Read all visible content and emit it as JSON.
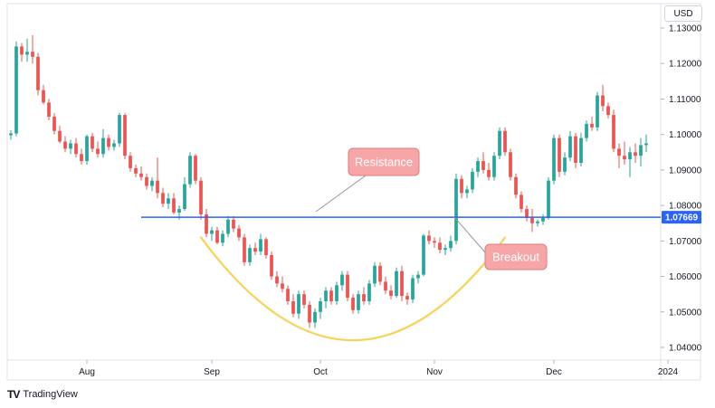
{
  "currency_label": "USD",
  "brand": {
    "logo": "TV",
    "name": "TradingView"
  },
  "colors": {
    "up": "#26a69a",
    "down": "#ef5350",
    "resistance": "#2962ff",
    "arc": "#f7d35a",
    "callout": "#f7a6a8",
    "callout_border": "#e07b7e"
  },
  "chart_data": {
    "type": "candlestick",
    "ylim": [
      1.035,
      1.135
    ],
    "y_ticks": [
      "1.04000",
      "1.05000",
      "1.06000",
      "1.07000",
      "1.08000",
      "1.09000",
      "1.10000",
      "1.11000",
      "1.12000",
      "1.13000"
    ],
    "x_ticks": [
      {
        "label": "Aug",
        "index": 14
      },
      {
        "label": "Sep",
        "index": 37
      },
      {
        "label": "Oct",
        "index": 57
      },
      {
        "label": "Nov",
        "index": 78
      },
      {
        "label": "Dec",
        "index": 100
      },
      {
        "label": "2024",
        "index": 121
      }
    ],
    "resistance": {
      "value": 1.07669,
      "label": "1.07669",
      "start_index": 24
    },
    "annotations": [
      {
        "text": "Resistance",
        "anchor_index": 58,
        "anchor_value": 1.0765
      },
      {
        "text": "Breakout",
        "anchor_index": 87,
        "anchor_value": 1.0765
      }
    ],
    "arc": {
      "start_index": 35,
      "end_index": 91,
      "top_value": 1.071,
      "bottom_value": 1.042
    },
    "ohlc": [
      [
        1.0998,
        1.1012,
        1.0985,
        1.1003
      ],
      [
        1.1003,
        1.1262,
        1.0995,
        1.1248
      ],
      [
        1.1248,
        1.1258,
        1.1205,
        1.1225
      ],
      [
        1.1225,
        1.127,
        1.1205,
        1.1233
      ],
      [
        1.1233,
        1.128,
        1.12,
        1.1219
      ],
      [
        1.1219,
        1.123,
        1.111,
        1.1125
      ],
      [
        1.1125,
        1.114,
        1.1085,
        1.109
      ],
      [
        1.109,
        1.11,
        1.104,
        1.105
      ],
      [
        1.105,
        1.106,
        1.1,
        1.101
      ],
      [
        1.101,
        1.1025,
        1.0975,
        1.098
      ],
      [
        1.098,
        1.0995,
        1.095,
        1.096
      ],
      [
        1.096,
        1.0985,
        1.0945,
        1.0975
      ],
      [
        1.0975,
        1.099,
        1.0935,
        1.0945
      ],
      [
        1.0945,
        1.096,
        1.0915,
        1.0925
      ],
      [
        1.0925,
        1.1,
        1.0915,
        1.0995
      ],
      [
        1.0995,
        1.1005,
        1.095,
        1.096
      ],
      [
        1.096,
        1.098,
        1.0935,
        1.0945
      ],
      [
        1.0945,
        1.1015,
        1.0935,
        1.099
      ],
      [
        1.099,
        1.1,
        1.0955,
        1.0965
      ],
      [
        1.0965,
        1.0985,
        1.0955,
        1.0975
      ],
      [
        1.0975,
        1.106,
        1.0965,
        1.1055
      ],
      [
        1.1055,
        1.106,
        1.093,
        1.094
      ],
      [
        1.094,
        1.095,
        1.0895,
        1.0905
      ],
      [
        1.0905,
        1.0915,
        1.088,
        1.089
      ],
      [
        1.089,
        1.091,
        1.087,
        1.088
      ],
      [
        1.088,
        1.089,
        1.0845,
        1.0855
      ],
      [
        1.0855,
        1.088,
        1.084,
        1.087
      ],
      [
        1.087,
        1.0935,
        1.082,
        1.0835
      ],
      [
        1.0835,
        1.085,
        1.0795,
        1.0805
      ],
      [
        1.0805,
        1.0835,
        1.079,
        1.082
      ],
      [
        1.082,
        1.0835,
        1.0775,
        1.078
      ],
      [
        1.078,
        1.08,
        1.076,
        1.079
      ],
      [
        1.079,
        1.088,
        1.0785,
        1.086
      ],
      [
        1.086,
        1.095,
        1.085,
        1.094
      ],
      [
        1.094,
        1.0945,
        1.086,
        1.087
      ],
      [
        1.087,
        1.088,
        1.076,
        1.0775
      ],
      [
        1.0775,
        1.079,
        1.071,
        1.072
      ],
      [
        1.072,
        1.074,
        1.07,
        1.073
      ],
      [
        1.073,
        1.074,
        1.069,
        1.0695
      ],
      [
        1.0695,
        1.073,
        1.0685,
        1.072
      ],
      [
        1.072,
        1.077,
        1.071,
        1.076
      ],
      [
        1.076,
        1.077,
        1.0725,
        1.0735
      ],
      [
        1.0735,
        1.0745,
        1.07,
        1.071
      ],
      [
        1.071,
        1.072,
        1.063,
        1.064
      ],
      [
        1.064,
        1.069,
        1.063,
        1.068
      ],
      [
        1.068,
        1.0695,
        1.066,
        1.067
      ],
      [
        1.067,
        1.072,
        1.066,
        1.0705
      ],
      [
        1.0705,
        1.071,
        1.065,
        1.066
      ],
      [
        1.066,
        1.067,
        1.059,
        1.06
      ],
      [
        1.06,
        1.0615,
        1.057,
        1.058
      ],
      [
        1.058,
        1.06,
        1.0555,
        1.0565
      ],
      [
        1.0565,
        1.0575,
        1.052,
        1.053
      ],
      [
        1.053,
        1.055,
        1.0485,
        1.0495
      ],
      [
        1.0495,
        1.056,
        1.048,
        1.055
      ],
      [
        1.055,
        1.056,
        1.051,
        1.052
      ],
      [
        1.052,
        1.053,
        1.0455,
        1.047
      ],
      [
        1.047,
        1.051,
        1.0455,
        1.05
      ],
      [
        1.05,
        1.054,
        1.048,
        1.053
      ],
      [
        1.053,
        1.057,
        1.051,
        1.056
      ],
      [
        1.056,
        1.057,
        1.052,
        1.053
      ],
      [
        1.053,
        1.0585,
        1.052,
        1.0575
      ],
      [
        1.0575,
        1.0615,
        1.056,
        1.0605
      ],
      [
        1.0605,
        1.0615,
        1.053,
        1.054
      ],
      [
        1.054,
        1.055,
        1.0495,
        1.0505
      ],
      [
        1.0505,
        1.056,
        1.0495,
        1.055
      ],
      [
        1.055,
        1.057,
        1.052,
        1.053
      ],
      [
        1.053,
        1.059,
        1.052,
        1.058
      ],
      [
        1.058,
        1.064,
        1.057,
        1.063
      ],
      [
        1.063,
        1.064,
        1.0575,
        1.0585
      ],
      [
        1.0585,
        1.06,
        1.055,
        1.056
      ],
      [
        1.056,
        1.0575,
        1.0535,
        1.0545
      ],
      [
        1.0545,
        1.0625,
        1.054,
        1.0615
      ],
      [
        1.0615,
        1.063,
        1.053,
        1.0545
      ],
      [
        1.0545,
        1.0555,
        1.052,
        1.0535
      ],
      [
        1.0535,
        1.0605,
        1.0525,
        1.0595
      ],
      [
        1.0595,
        1.0615,
        1.058,
        1.0605
      ],
      [
        1.0605,
        1.072,
        1.06,
        1.0715
      ],
      [
        1.0715,
        1.073,
        1.069,
        1.07
      ],
      [
        1.07,
        1.071,
        1.068,
        1.0695
      ],
      [
        1.0695,
        1.071,
        1.0665,
        1.0675
      ],
      [
        1.0675,
        1.069,
        1.066,
        1.068
      ],
      [
        1.068,
        1.0715,
        1.067,
        1.07
      ],
      [
        1.07,
        1.089,
        1.069,
        1.0875
      ],
      [
        1.0875,
        1.0885,
        1.082,
        1.0835
      ],
      [
        1.0835,
        1.0855,
        1.082,
        1.0845
      ],
      [
        1.0845,
        1.0905,
        1.0835,
        1.0895
      ],
      [
        1.0895,
        1.0935,
        1.088,
        1.0925
      ],
      [
        1.0925,
        1.095,
        1.089,
        1.09
      ],
      [
        1.09,
        1.092,
        1.087,
        1.088
      ],
      [
        1.088,
        1.095,
        1.087,
        1.094
      ],
      [
        1.094,
        1.102,
        1.093,
        1.101
      ],
      [
        1.101,
        1.102,
        1.094,
        1.095
      ],
      [
        1.095,
        1.096,
        1.087,
        1.088
      ],
      [
        1.088,
        1.089,
        1.082,
        1.083
      ],
      [
        1.083,
        1.084,
        1.078,
        1.079
      ],
      [
        1.079,
        1.08,
        1.0755,
        1.0765
      ],
      [
        1.0765,
        1.079,
        1.0725,
        1.075
      ],
      [
        1.075,
        1.076,
        1.074,
        1.0755
      ],
      [
        1.0755,
        1.0775,
        1.0745,
        1.0765
      ],
      [
        1.0765,
        1.088,
        1.076,
        1.087
      ],
      [
        1.087,
        1.1,
        1.086,
        1.099
      ],
      [
        1.099,
        1.1,
        1.088,
        1.0895
      ],
      [
        1.0895,
        1.095,
        1.0885,
        1.0935
      ],
      [
        1.0935,
        1.101,
        1.0925,
        1.0995
      ],
      [
        1.0995,
        1.1005,
        1.0905,
        1.092
      ],
      [
        1.092,
        1.1005,
        1.091,
        1.099
      ],
      [
        1.099,
        1.104,
        1.098,
        1.103
      ],
      [
        1.103,
        1.105,
        1.101,
        1.102
      ],
      [
        1.102,
        1.112,
        1.101,
        1.111
      ],
      [
        1.111,
        1.114,
        1.1065,
        1.108
      ],
      [
        1.108,
        1.109,
        1.1045,
        1.1055
      ],
      [
        1.1055,
        1.107,
        1.095,
        1.096
      ],
      [
        1.096,
        1.0975,
        1.0905,
        1.094
      ],
      [
        1.094,
        1.098,
        1.0915,
        1.093
      ],
      [
        1.093,
        1.0965,
        1.088,
        1.095
      ],
      [
        1.095,
        1.0975,
        1.092,
        1.094
      ],
      [
        1.094,
        1.099,
        1.091,
        1.097
      ],
      [
        1.097,
        1.1,
        1.095,
        1.0975
      ]
    ]
  }
}
